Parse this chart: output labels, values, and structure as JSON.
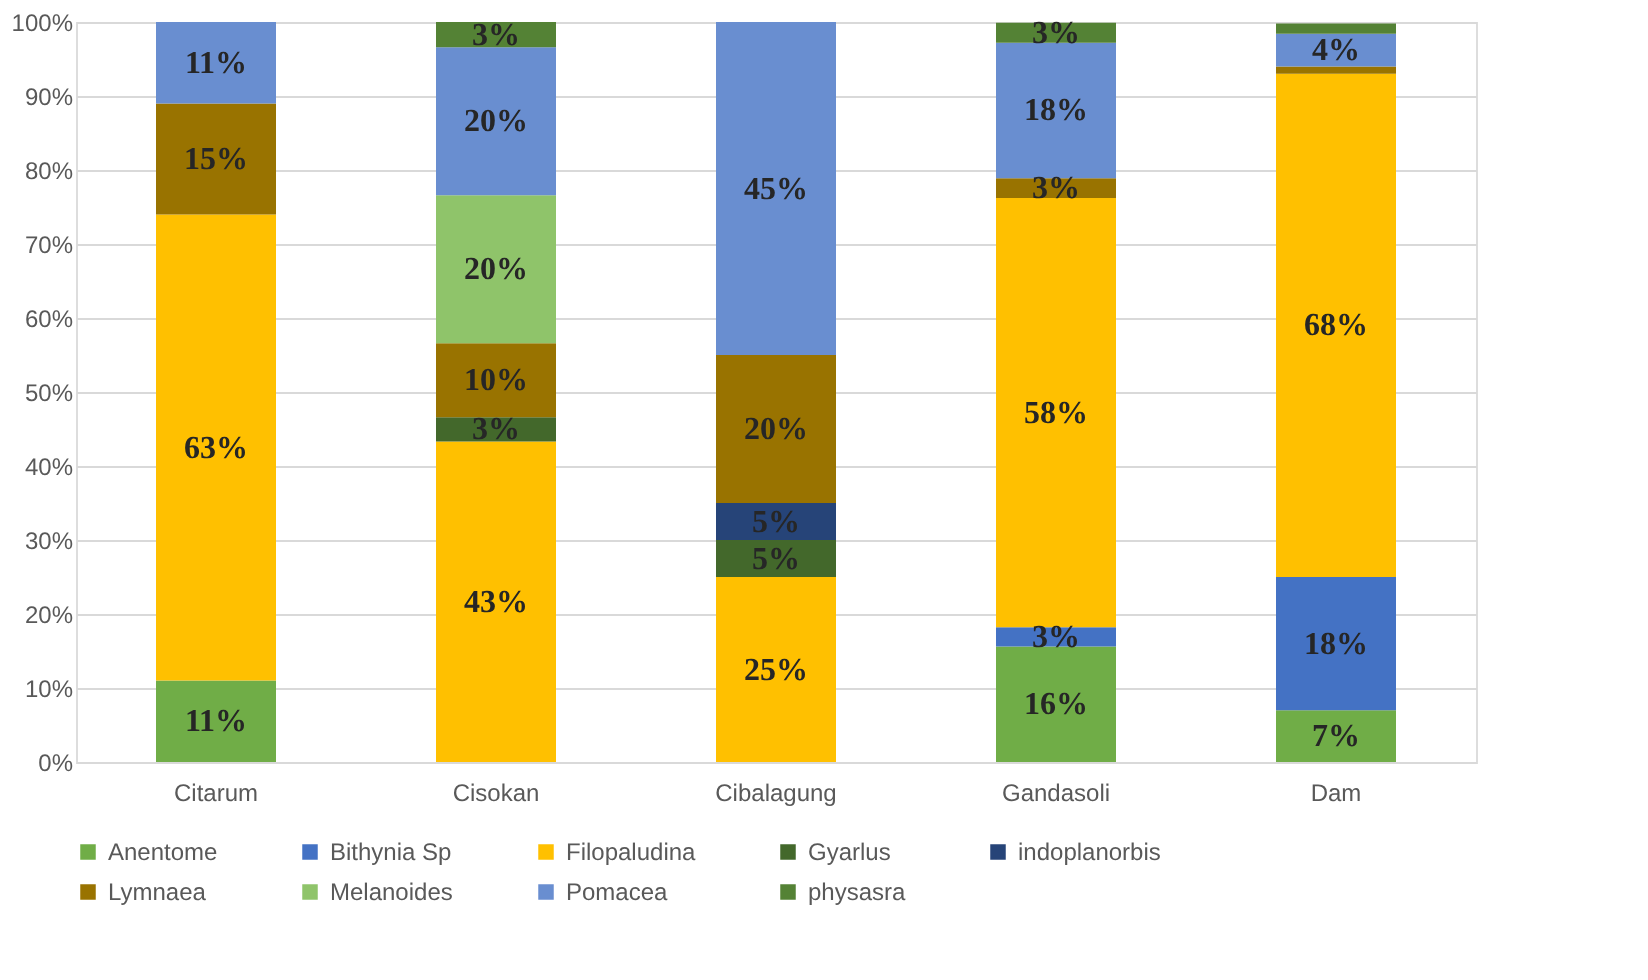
{
  "chart_data": {
    "type": "bar",
    "stacked": true,
    "categories": [
      "Citarum",
      "Cisokan",
      "Cibalagung",
      "Gandasoli",
      "Dam"
    ],
    "series": [
      {
        "name": "Anentome",
        "color": "#70ad47",
        "values": [
          11,
          null,
          null,
          15.6,
          7
        ],
        "value_labels": [
          "11%",
          null,
          null,
          "16%",
          "7%"
        ]
      },
      {
        "name": "Bithynia Sp",
        "color": "#4472c4",
        "values": [
          null,
          null,
          null,
          2.6,
          18
        ],
        "value_labels": [
          null,
          null,
          null,
          "3%",
          "18%"
        ]
      },
      {
        "name": "Filopaludina",
        "color": "#ffc000",
        "values": [
          63,
          43.3,
          25,
          58,
          68
        ],
        "value_labels": [
          "63%",
          "43%",
          "25%",
          "58%",
          "68%"
        ]
      },
      {
        "name": "Gyarlus",
        "color": "#43682b",
        "values": [
          null,
          3.3,
          5,
          null,
          null
        ],
        "value_labels": [
          null,
          "3%",
          "5%",
          null,
          null
        ]
      },
      {
        "name": "indoplanorbis",
        "color": "#264478",
        "values": [
          null,
          null,
          5,
          null,
          null
        ],
        "value_labels": [
          null,
          null,
          "5%",
          null,
          null
        ]
      },
      {
        "name": "Lymnaea",
        "color": "#997300",
        "values": [
          15,
          10,
          20,
          2.7,
          1
        ],
        "value_labels": [
          "15%",
          "10%",
          "20%",
          "3%",
          null
        ]
      },
      {
        "name": "Melanoides",
        "color": "#8fc46a",
        "values": [
          null,
          20,
          null,
          null,
          null
        ],
        "value_labels": [
          null,
          "20%",
          null,
          null,
          null
        ]
      },
      {
        "name": "Pomacea",
        "color": "#698ed0",
        "values": [
          11,
          20,
          45,
          18.3,
          4.4
        ],
        "value_labels": [
          "11%",
          "20%",
          "45%",
          "18%",
          "4%"
        ]
      },
      {
        "name": "physasra",
        "color": "#548235",
        "values": [
          null,
          3.4,
          null,
          2.7,
          1.4
        ],
        "value_labels": [
          null,
          "3%",
          null,
          "3%",
          null
        ]
      }
    ],
    "ylim": [
      0,
      100
    ],
    "yticks": [
      {
        "value": 0,
        "label": "0%"
      },
      {
        "value": 10,
        "label": "10%"
      },
      {
        "value": 20,
        "label": "20%"
      },
      {
        "value": 30,
        "label": "30%"
      },
      {
        "value": 40,
        "label": "40%"
      },
      {
        "value": 50,
        "label": "50%"
      },
      {
        "value": 60,
        "label": "60%"
      },
      {
        "value": 70,
        "label": "70%"
      },
      {
        "value": 80,
        "label": "80%"
      },
      {
        "value": 90,
        "label": "90%"
      },
      {
        "value": 100,
        "label": "100%"
      }
    ],
    "grid": "y",
    "legend": "bottom"
  }
}
